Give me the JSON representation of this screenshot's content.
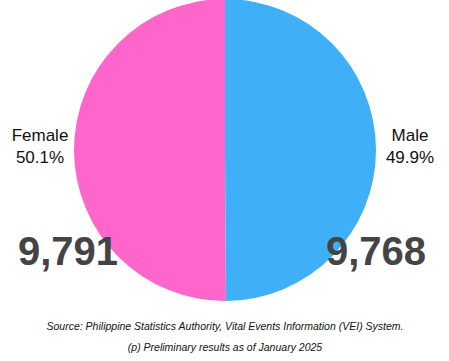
{
  "chart_data": {
    "type": "pie",
    "categories": [
      "Female",
      "Male"
    ],
    "values": [
      50.1,
      49.9
    ],
    "value_labels": [
      "50.1%",
      "49.9%"
    ],
    "counts": [
      9791,
      9768
    ],
    "colors": [
      "#ff66cc",
      "#3fb0f7"
    ],
    "source": "Source: Philippine Statistics Authority, Vital Events Information (VEI) System.",
    "note": "(p) Preliminary results as of January 2025"
  }
}
